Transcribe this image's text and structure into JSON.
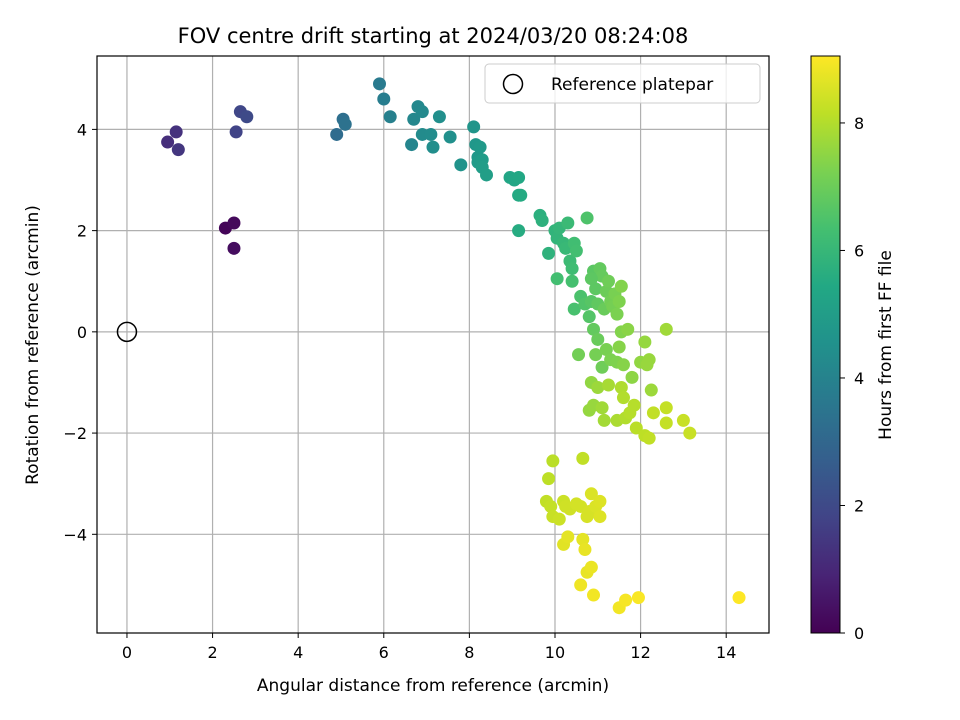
{
  "chart_data": {
    "type": "scatter",
    "title": "FOV centre drift starting at 2024/03/20 08:24:08",
    "xlabel": "Angular distance from reference (arcmin)",
    "ylabel": "Rotation from reference (arcmin)",
    "xlim": [
      -0.7,
      15
    ],
    "ylim": [
      -5.95,
      5.45
    ],
    "xticks": [
      0,
      2,
      4,
      6,
      8,
      10,
      12,
      14
    ],
    "yticks": [
      4,
      2,
      0,
      -2,
      -4
    ],
    "grid": true,
    "legend": {
      "position": "top-right",
      "entries": [
        "Reference platepar"
      ]
    },
    "reference_point": {
      "x": 0,
      "y": 0
    },
    "colorbar": {
      "label": "Hours from first FF file",
      "range": [
        0,
        9.05
      ],
      "ticks": [
        0,
        2,
        4,
        6,
        8
      ],
      "colormap": "viridis"
    },
    "points": [
      {
        "x": 2.3,
        "y": 2.05,
        "c": 0.1
      },
      {
        "x": 2.5,
        "y": 2.15,
        "c": 0.2
      },
      {
        "x": 2.5,
        "y": 1.65,
        "c": 0.3
      },
      {
        "x": 0.95,
        "y": 3.75,
        "c": 1.2
      },
      {
        "x": 1.15,
        "y": 3.95,
        "c": 1.3
      },
      {
        "x": 1.2,
        "y": 3.6,
        "c": 1.4
      },
      {
        "x": 2.55,
        "y": 3.95,
        "c": 1.8
      },
      {
        "x": 2.65,
        "y": 4.35,
        "c": 1.9
      },
      {
        "x": 2.8,
        "y": 4.25,
        "c": 2.0
      },
      {
        "x": 4.9,
        "y": 3.9,
        "c": 3.2
      },
      {
        "x": 5.05,
        "y": 4.2,
        "c": 3.3
      },
      {
        "x": 5.1,
        "y": 4.1,
        "c": 3.4
      },
      {
        "x": 5.9,
        "y": 4.9,
        "c": 3.7
      },
      {
        "x": 6.0,
        "y": 4.6,
        "c": 3.8
      },
      {
        "x": 6.15,
        "y": 4.25,
        "c": 3.9
      },
      {
        "x": 6.65,
        "y": 3.7,
        "c": 4.1
      },
      {
        "x": 6.7,
        "y": 4.2,
        "c": 4.15
      },
      {
        "x": 6.8,
        "y": 4.45,
        "c": 4.2
      },
      {
        "x": 6.9,
        "y": 4.35,
        "c": 4.25
      },
      {
        "x": 6.9,
        "y": 3.9,
        "c": 4.3
      },
      {
        "x": 7.1,
        "y": 3.9,
        "c": 4.35
      },
      {
        "x": 7.15,
        "y": 3.65,
        "c": 4.4
      },
      {
        "x": 7.3,
        "y": 4.25,
        "c": 4.45
      },
      {
        "x": 7.55,
        "y": 3.85,
        "c": 4.5
      },
      {
        "x": 7.8,
        "y": 3.3,
        "c": 4.6
      },
      {
        "x": 8.1,
        "y": 4.05,
        "c": 4.7
      },
      {
        "x": 8.15,
        "y": 3.7,
        "c": 4.75
      },
      {
        "x": 8.2,
        "y": 3.45,
        "c": 4.8
      },
      {
        "x": 8.25,
        "y": 3.65,
        "c": 4.85
      },
      {
        "x": 8.2,
        "y": 3.35,
        "c": 4.9
      },
      {
        "x": 8.3,
        "y": 3.4,
        "c": 4.95
      },
      {
        "x": 8.3,
        "y": 3.25,
        "c": 5.0
      },
      {
        "x": 8.4,
        "y": 3.1,
        "c": 5.05
      },
      {
        "x": 8.95,
        "y": 3.05,
        "c": 5.3
      },
      {
        "x": 9.05,
        "y": 3.0,
        "c": 5.35
      },
      {
        "x": 9.15,
        "y": 3.05,
        "c": 5.4
      },
      {
        "x": 9.15,
        "y": 2.7,
        "c": 5.45
      },
      {
        "x": 9.2,
        "y": 2.7,
        "c": 5.5
      },
      {
        "x": 9.15,
        "y": 2.0,
        "c": 5.55
      },
      {
        "x": 9.65,
        "y": 2.3,
        "c": 5.7
      },
      {
        "x": 9.7,
        "y": 2.2,
        "c": 5.75
      },
      {
        "x": 9.85,
        "y": 1.55,
        "c": 5.8
      },
      {
        "x": 10.0,
        "y": 2.0,
        "c": 5.85
      },
      {
        "x": 10.05,
        "y": 1.85,
        "c": 5.9
      },
      {
        "x": 10.1,
        "y": 2.05,
        "c": 5.95
      },
      {
        "x": 10.2,
        "y": 1.75,
        "c": 6.0
      },
      {
        "x": 10.25,
        "y": 1.65,
        "c": 6.05
      },
      {
        "x": 10.3,
        "y": 2.15,
        "c": 6.1
      },
      {
        "x": 10.35,
        "y": 1.4,
        "c": 6.15
      },
      {
        "x": 10.4,
        "y": 1.25,
        "c": 6.2
      },
      {
        "x": 10.45,
        "y": 1.75,
        "c": 6.25
      },
      {
        "x": 10.5,
        "y": 1.6,
        "c": 6.3
      },
      {
        "x": 10.05,
        "y": 1.05,
        "c": 6.3
      },
      {
        "x": 10.4,
        "y": 1.0,
        "c": 6.35
      },
      {
        "x": 10.45,
        "y": 0.45,
        "c": 6.4
      },
      {
        "x": 10.6,
        "y": 0.7,
        "c": 6.45
      },
      {
        "x": 10.75,
        "y": 2.25,
        "c": 6.5
      },
      {
        "x": 10.7,
        "y": 0.55,
        "c": 6.55
      },
      {
        "x": 10.8,
        "y": 0.3,
        "c": 6.6
      },
      {
        "x": 10.85,
        "y": 0.6,
        "c": 6.65
      },
      {
        "x": 10.9,
        "y": 1.2,
        "c": 6.7
      },
      {
        "x": 10.95,
        "y": 0.85,
        "c": 6.75
      },
      {
        "x": 11.0,
        "y": 0.55,
        "c": 6.8
      },
      {
        "x": 11.05,
        "y": 1.25,
        "c": 6.85
      },
      {
        "x": 11.1,
        "y": 1.1,
        "c": 6.9
      },
      {
        "x": 11.15,
        "y": 0.45,
        "c": 6.95
      },
      {
        "x": 11.2,
        "y": 0.8,
        "c": 7.0
      },
      {
        "x": 11.25,
        "y": 1.0,
        "c": 7.05
      },
      {
        "x": 11.3,
        "y": 0.6,
        "c": 7.1
      },
      {
        "x": 11.35,
        "y": 0.5,
        "c": 7.15
      },
      {
        "x": 11.4,
        "y": 0.75,
        "c": 7.2
      },
      {
        "x": 11.45,
        "y": 0.35,
        "c": 7.25
      },
      {
        "x": 11.5,
        "y": 0.6,
        "c": 7.3
      },
      {
        "x": 11.55,
        "y": 0.9,
        "c": 7.35
      },
      {
        "x": 10.85,
        "y": 1.05,
        "c": 6.75
      },
      {
        "x": 10.9,
        "y": 0.05,
        "c": 6.85
      },
      {
        "x": 11.0,
        "y": -0.15,
        "c": 6.95
      },
      {
        "x": 11.1,
        "y": -0.7,
        "c": 7.05
      },
      {
        "x": 10.55,
        "y": -0.45,
        "c": 7.1
      },
      {
        "x": 10.95,
        "y": -0.45,
        "c": 7.15
      },
      {
        "x": 11.2,
        "y": -0.35,
        "c": 7.2
      },
      {
        "x": 11.3,
        "y": -0.55,
        "c": 7.25
      },
      {
        "x": 11.45,
        "y": -0.6,
        "c": 7.3
      },
      {
        "x": 11.55,
        "y": 0.0,
        "c": 7.35
      },
      {
        "x": 11.6,
        "y": -0.65,
        "c": 7.4
      },
      {
        "x": 11.7,
        "y": 0.05,
        "c": 7.45
      },
      {
        "x": 11.5,
        "y": -0.3,
        "c": 7.4
      },
      {
        "x": 11.8,
        "y": -0.9,
        "c": 7.5
      },
      {
        "x": 12.0,
        "y": -0.6,
        "c": 7.55
      },
      {
        "x": 12.1,
        "y": -0.2,
        "c": 7.6
      },
      {
        "x": 12.2,
        "y": -0.55,
        "c": 7.65
      },
      {
        "x": 12.15,
        "y": -0.65,
        "c": 7.65
      },
      {
        "x": 12.25,
        "y": -1.15,
        "c": 7.7
      },
      {
        "x": 12.6,
        "y": 0.05,
        "c": 7.75
      },
      {
        "x": 10.85,
        "y": -1.0,
        "c": 7.55
      },
      {
        "x": 10.8,
        "y": -1.55,
        "c": 7.6
      },
      {
        "x": 10.9,
        "y": -1.45,
        "c": 7.65
      },
      {
        "x": 11.0,
        "y": -1.1,
        "c": 7.7
      },
      {
        "x": 11.1,
        "y": -1.5,
        "c": 7.75
      },
      {
        "x": 11.15,
        "y": -1.75,
        "c": 7.8
      },
      {
        "x": 11.25,
        "y": -1.05,
        "c": 7.85
      },
      {
        "x": 11.45,
        "y": -1.75,
        "c": 7.9
      },
      {
        "x": 11.55,
        "y": -1.1,
        "c": 7.95
      },
      {
        "x": 11.6,
        "y": -1.3,
        "c": 8.0
      },
      {
        "x": 11.65,
        "y": -1.7,
        "c": 8.0
      },
      {
        "x": 11.75,
        "y": -1.6,
        "c": 8.05
      },
      {
        "x": 11.85,
        "y": -1.45,
        "c": 8.05
      },
      {
        "x": 11.9,
        "y": -1.9,
        "c": 8.1
      },
      {
        "x": 12.1,
        "y": -2.05,
        "c": 8.15
      },
      {
        "x": 12.2,
        "y": -2.1,
        "c": 8.2
      },
      {
        "x": 12.3,
        "y": -1.6,
        "c": 8.2
      },
      {
        "x": 12.6,
        "y": -1.8,
        "c": 8.25
      },
      {
        "x": 12.6,
        "y": -1.5,
        "c": 8.25
      },
      {
        "x": 13.0,
        "y": -1.75,
        "c": 8.3
      },
      {
        "x": 13.15,
        "y": -2.0,
        "c": 8.3
      },
      {
        "x": 9.95,
        "y": -2.55,
        "c": 8.1
      },
      {
        "x": 9.85,
        "y": -2.9,
        "c": 8.15
      },
      {
        "x": 9.8,
        "y": -3.35,
        "c": 8.2
      },
      {
        "x": 9.9,
        "y": -3.45,
        "c": 8.25
      },
      {
        "x": 9.95,
        "y": -3.65,
        "c": 8.3
      },
      {
        "x": 10.1,
        "y": -3.7,
        "c": 8.35
      },
      {
        "x": 10.2,
        "y": -3.35,
        "c": 8.35
      },
      {
        "x": 10.25,
        "y": -3.45,
        "c": 8.4
      },
      {
        "x": 10.35,
        "y": -3.5,
        "c": 8.4
      },
      {
        "x": 10.5,
        "y": -3.4,
        "c": 8.45
      },
      {
        "x": 10.6,
        "y": -3.45,
        "c": 8.45
      },
      {
        "x": 10.75,
        "y": -3.65,
        "c": 8.5
      },
      {
        "x": 10.8,
        "y": -3.55,
        "c": 8.5
      },
      {
        "x": 10.85,
        "y": -3.2,
        "c": 8.55
      },
      {
        "x": 10.95,
        "y": -3.45,
        "c": 8.55
      },
      {
        "x": 11.05,
        "y": -3.35,
        "c": 8.6
      },
      {
        "x": 11.05,
        "y": -3.65,
        "c": 8.6
      },
      {
        "x": 10.65,
        "y": -2.5,
        "c": 8.2
      },
      {
        "x": 10.2,
        "y": -4.2,
        "c": 8.65
      },
      {
        "x": 10.3,
        "y": -4.05,
        "c": 8.7
      },
      {
        "x": 10.65,
        "y": -4.1,
        "c": 8.7
      },
      {
        "x": 10.7,
        "y": -4.3,
        "c": 8.75
      },
      {
        "x": 10.75,
        "y": -4.75,
        "c": 8.75
      },
      {
        "x": 10.85,
        "y": -4.65,
        "c": 8.8
      },
      {
        "x": 10.6,
        "y": -5.0,
        "c": 8.85
      },
      {
        "x": 10.9,
        "y": -5.2,
        "c": 8.9
      },
      {
        "x": 11.5,
        "y": -5.45,
        "c": 8.9
      },
      {
        "x": 11.65,
        "y": -5.3,
        "c": 8.95
      },
      {
        "x": 11.95,
        "y": -5.25,
        "c": 9.0
      },
      {
        "x": 14.3,
        "y": -5.25,
        "c": 9.05
      }
    ]
  }
}
